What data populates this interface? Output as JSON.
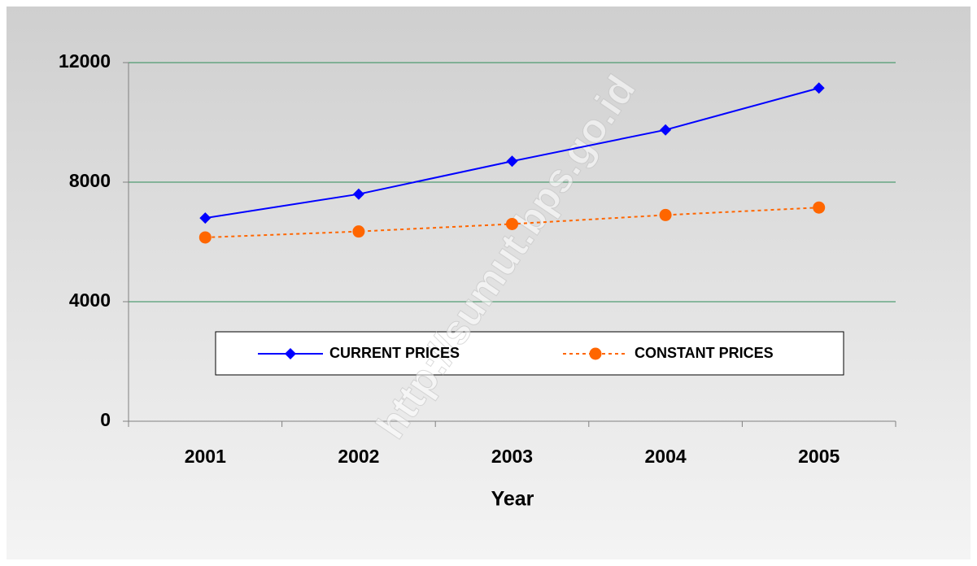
{
  "chart_data": {
    "type": "line",
    "x_label": "Year",
    "categories": [
      "2001",
      "2002",
      "2003",
      "2004",
      "2005"
    ],
    "series": [
      {
        "name": "CURRENT PRICES",
        "color": "#0000ff",
        "marker": "diamond",
        "line_style": "solid",
        "values": [
          6800,
          7600,
          8700,
          9750,
          11150
        ]
      },
      {
        "name": "CONSTANT PRICES",
        "color": "#ff6600",
        "marker": "circle",
        "line_style": "dashed",
        "values": [
          6150,
          6350,
          6600,
          6900,
          7150
        ]
      }
    ],
    "ylim": [
      0,
      12000
    ],
    "yticks": [
      0,
      4000,
      8000,
      12000
    ],
    "grid": true,
    "grid_color": "#2e8b57"
  },
  "watermark": "http://sumut.bps.go.id"
}
